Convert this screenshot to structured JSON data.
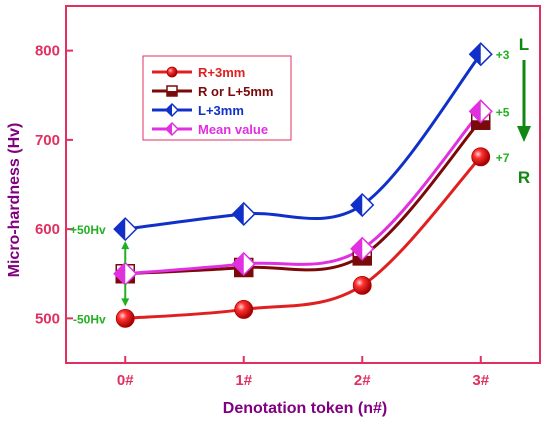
{
  "chart_data": {
    "type": "line",
    "title": "",
    "xlabel": "Denotation token (n#)",
    "ylabel": "Micro-hardness (Hv)",
    "categories": [
      "0#",
      "1#",
      "2#",
      "3#"
    ],
    "xlim": [
      -0.5,
      3.5
    ],
    "ylim": [
      450,
      850
    ],
    "yticks": [
      500,
      600,
      700,
      800
    ],
    "grid": false,
    "legend_position": "top-left",
    "series": [
      {
        "name": "R+3mm",
        "values": [
          500,
          510,
          537,
          681
        ],
        "color": "#e02020",
        "marker": "sphere"
      },
      {
        "name": "R or L+5mm",
        "values": [
          550,
          557,
          570,
          722
        ],
        "color": "#7a0a0a",
        "marker": "half-square"
      },
      {
        "name": "L+3mm",
        "values": [
          600,
          617,
          627,
          796
        ],
        "color": "#1030c8",
        "marker": "half-diamond"
      },
      {
        "name": "Mean value",
        "values": [
          550,
          561,
          578,
          732
        ],
        "color": "#e030e0",
        "marker": "half-diamond"
      }
    ],
    "annotations": {
      "upper_bound": "+50Hv",
      "lower_bound": "-50Hv",
      "point_labels": [
        "+3",
        "+5",
        "+7"
      ],
      "arrow_top": "L",
      "arrow_bottom": "R"
    }
  },
  "colors": {
    "axis": "#e03060",
    "axis_label": "#800080",
    "annotation": "#22b022",
    "arrow": "#118811"
  }
}
